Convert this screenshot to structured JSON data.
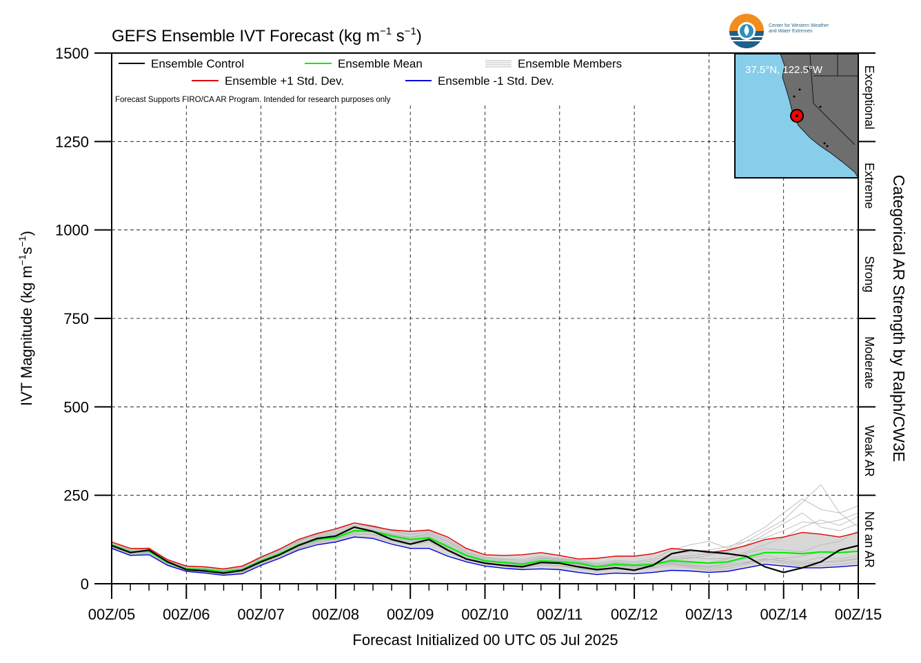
{
  "branding": {
    "org_name_line1": "Center for Western Weather",
    "org_name_line2": "and Water Extremes"
  },
  "colors": {
    "control": "#000000",
    "mean": "#00ee00",
    "plus_std": "#e00000",
    "minus_std": "#0000dd",
    "members": "#b8b8b8",
    "spread_fill": "#d8d8d8",
    "ocean": "#87ceeb",
    "land": "#6e6e6e",
    "logo_orange": "#f28c1e",
    "logo_blue": "#1f5f8b"
  },
  "inset_map": {
    "label": "37.5°N, 122.5°W",
    "marker": "red-dot"
  },
  "chart_data": {
    "type": "line",
    "title_prefix": "GEFS Ensemble IVT Forecast (kg m",
    "title_exp1": "−1",
    "title_mid": " s",
    "title_exp2": "−1",
    "title_suffix": ")",
    "ylabel_prefix": "IVT Magnitude (kg m",
    "ylabel_exp1": "−1",
    "ylabel_mid": "s",
    "ylabel_exp2": "−1",
    "ylabel_suffix": ")",
    "xlabel": "Forecast Initialized 00 UTC 05 Jul 2025",
    "right_axis_label": "Categorical AR Strength by Ralph/CW3E",
    "disclaimer": "Forecast Supports FIRO/CA AR Program. Intended for research purposes only",
    "ylim": [
      0,
      1500
    ],
    "xlim": [
      0,
      240
    ],
    "x_units": "forecast hours since 00Z/05",
    "yticks": [
      0,
      250,
      500,
      750,
      1000,
      1250,
      1500
    ],
    "ytick_labels": [
      "0",
      "250",
      "500",
      "750",
      "1000",
      "1250",
      "1500"
    ],
    "xtick_labels": [
      "00Z/05",
      "00Z/06",
      "00Z/07",
      "00Z/08",
      "00Z/09",
      "00Z/10",
      "00Z/11",
      "00Z/12",
      "00Z/13",
      "00Z/14",
      "00Z/15"
    ],
    "grid": true,
    "categories": [
      {
        "label": "Not an AR",
        "range": [
          0,
          250
        ]
      },
      {
        "label": "Weak AR",
        "range": [
          250,
          500
        ]
      },
      {
        "label": "Moderate",
        "range": [
          500,
          750
        ]
      },
      {
        "label": "Strong",
        "range": [
          750,
          1000
        ]
      },
      {
        "label": "Extreme",
        "range": [
          1000,
          1250
        ]
      },
      {
        "label": "Exceptional",
        "range": [
          1250,
          1500
        ]
      }
    ],
    "legend": {
      "control": "Ensemble Control",
      "mean": "Ensemble Mean",
      "members": "Ensemble Members",
      "plus_std": "Ensemble +1 Std. Dev.",
      "minus_std": "Ensemble -1 Std. Dev."
    },
    "x": [
      0,
      6,
      12,
      18,
      24,
      30,
      36,
      42,
      48,
      54,
      60,
      66,
      72,
      78,
      84,
      90,
      96,
      102,
      108,
      114,
      120,
      126,
      132,
      138,
      144,
      150,
      156,
      162,
      168,
      174,
      180,
      186,
      192,
      198,
      204,
      210,
      216,
      222,
      228,
      234,
      240
    ],
    "series": [
      {
        "key": "control",
        "name": "Ensemble Control",
        "values": [
          108,
          88,
          95,
          62,
          40,
          36,
          30,
          38,
          62,
          82,
          108,
          128,
          135,
          160,
          148,
          125,
          112,
          125,
          95,
          70,
          58,
          52,
          48,
          60,
          58,
          48,
          40,
          45,
          38,
          52,
          85,
          95,
          90,
          85,
          78,
          48,
          32,
          45,
          62,
          95,
          108
        ]
      },
      {
        "key": "mean",
        "name": "Ensemble Mean",
        "values": [
          110,
          90,
          92,
          60,
          42,
          40,
          34,
          40,
          65,
          85,
          110,
          125,
          130,
          150,
          148,
          135,
          125,
          130,
          105,
          80,
          65,
          60,
          55,
          65,
          62,
          58,
          48,
          55,
          52,
          55,
          65,
          62,
          58,
          62,
          75,
          88,
          88,
          85,
          90,
          88,
          92
        ]
      },
      {
        "key": "plus_std",
        "name": "Ensemble +1 Std. Dev.",
        "values": [
          118,
          100,
          100,
          68,
          50,
          48,
          42,
          50,
          75,
          98,
          125,
          142,
          155,
          172,
          162,
          152,
          148,
          152,
          132,
          100,
          82,
          80,
          82,
          88,
          80,
          70,
          72,
          78,
          78,
          85,
          100,
          95,
          88,
          95,
          108,
          125,
          132,
          145,
          140,
          132,
          145
        ]
      },
      {
        "key": "minus_std",
        "name": "Ensemble -1 Std. Dev.",
        "values": [
          100,
          80,
          82,
          52,
          35,
          30,
          24,
          28,
          52,
          72,
          95,
          110,
          118,
          132,
          128,
          112,
          100,
          100,
          78,
          62,
          50,
          44,
          40,
          42,
          40,
          32,
          26,
          30,
          28,
          32,
          38,
          36,
          32,
          35,
          45,
          55,
          50,
          45,
          45,
          48,
          52
        ]
      }
    ],
    "members": [
      [
        105,
        85,
        96,
        58,
        38,
        35,
        28,
        36,
        58,
        80,
        112,
        132,
        140,
        162,
        150,
        130,
        118,
        128,
        98,
        72,
        60,
        55,
        52,
        64,
        60,
        52,
        44,
        50,
        45,
        52,
        70,
        75,
        70,
        72,
        90,
        110,
        130,
        160,
        180,
        165,
        190
      ],
      [
        112,
        92,
        90,
        62,
        45,
        42,
        36,
        44,
        70,
        90,
        115,
        128,
        128,
        145,
        150,
        140,
        130,
        140,
        112,
        84,
        66,
        62,
        58,
        70,
        66,
        60,
        52,
        60,
        55,
        60,
        62,
        55,
        50,
        58,
        70,
        80,
        70,
        62,
        75,
        70,
        80
      ],
      [
        102,
        84,
        88,
        55,
        36,
        32,
        28,
        32,
        55,
        78,
        100,
        118,
        124,
        140,
        138,
        125,
        118,
        122,
        95,
        72,
        58,
        52,
        46,
        55,
        52,
        45,
        38,
        45,
        42,
        48,
        55,
        48,
        42,
        48,
        60,
        72,
        62,
        55,
        60,
        62,
        70
      ],
      [
        118,
        96,
        102,
        66,
        48,
        46,
        40,
        48,
        78,
        96,
        120,
        140,
        150,
        172,
        165,
        150,
        140,
        150,
        125,
        95,
        75,
        70,
        68,
        78,
        72,
        66,
        58,
        66,
        62,
        70,
        95,
        110,
        120,
        100,
        130,
        160,
        200,
        240,
        210,
        200,
        220
      ],
      [
        108,
        90,
        94,
        60,
        42,
        38,
        32,
        40,
        62,
        84,
        105,
        122,
        132,
        148,
        145,
        132,
        122,
        128,
        100,
        76,
        62,
        58,
        54,
        62,
        60,
        55,
        46,
        52,
        48,
        52,
        58,
        52,
        48,
        55,
        62,
        70,
        65,
        58,
        62,
        65,
        72
      ],
      [
        114,
        94,
        98,
        64,
        44,
        42,
        36,
        46,
        72,
        92,
        118,
        135,
        142,
        158,
        155,
        142,
        132,
        142,
        118,
        88,
        70,
        64,
        60,
        72,
        68,
        62,
        52,
        58,
        54,
        60,
        75,
        80,
        85,
        90,
        110,
        140,
        170,
        200,
        160,
        150,
        170
      ],
      [
        100,
        82,
        86,
        54,
        36,
        32,
        26,
        30,
        52,
        74,
        98,
        115,
        120,
        135,
        132,
        120,
        110,
        118,
        92,
        68,
        56,
        50,
        44,
        52,
        50,
        42,
        36,
        42,
        38,
        45,
        50,
        45,
        38,
        42,
        55,
        65,
        58,
        50,
        52,
        55,
        62
      ],
      [
        110,
        88,
        92,
        60,
        40,
        38,
        30,
        38,
        64,
        86,
        110,
        126,
        134,
        152,
        150,
        138,
        128,
        136,
        108,
        80,
        64,
        60,
        56,
        66,
        64,
        58,
        48,
        54,
        50,
        56,
        68,
        72,
        80,
        95,
        120,
        150,
        180,
        230,
        280,
        200,
        160
      ],
      [
        106,
        86,
        90,
        58,
        40,
        36,
        30,
        36,
        60,
        82,
        106,
        124,
        130,
        150,
        146,
        134,
        124,
        132,
        104,
        78,
        62,
        58,
        54,
        64,
        62,
        56,
        46,
        52,
        48,
        54,
        60,
        58,
        60,
        70,
        85,
        100,
        95,
        90,
        110,
        120,
        150
      ],
      [
        116,
        95,
        100,
        65,
        46,
        44,
        38,
        46,
        75,
        95,
        122,
        138,
        146,
        165,
        160,
        148,
        138,
        146,
        120,
        90,
        72,
        68,
        64,
        74,
        70,
        64,
        55,
        62,
        58,
        65,
        85,
        90,
        95,
        105,
        120,
        130,
        150,
        175,
        170,
        180,
        200
      ],
      [
        104,
        86,
        88,
        57,
        38,
        34,
        28,
        34,
        56,
        78,
        102,
        120,
        126,
        142,
        140,
        128,
        118,
        124,
        96,
        72,
        58,
        54,
        50,
        58,
        56,
        50,
        40,
        46,
        42,
        48,
        56,
        50,
        46,
        50,
        58,
        68,
        72,
        78,
        90,
        95,
        110
      ]
    ]
  }
}
